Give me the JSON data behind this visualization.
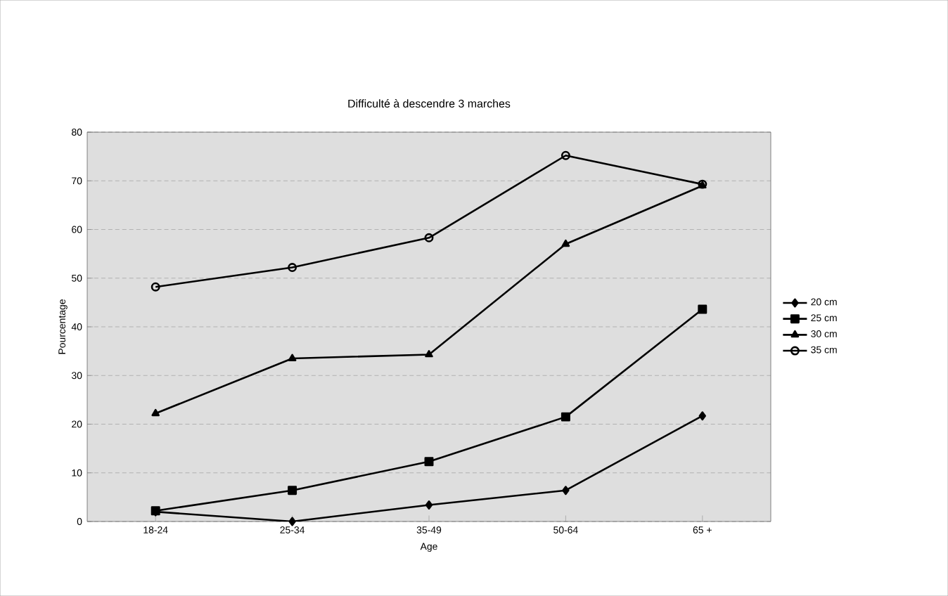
{
  "chart_data": {
    "type": "line",
    "title": "Difficulté à descendre 3 marches",
    "xlabel": "Age",
    "ylabel": "Pourcentage",
    "categories": [
      "18-24",
      "25-34",
      "35-49",
      "50-64",
      "65 +"
    ],
    "ylim": [
      0,
      80
    ],
    "yticks": [
      0,
      10,
      20,
      30,
      40,
      50,
      60,
      70,
      80
    ],
    "grid": "y",
    "legend": "right",
    "series": [
      {
        "name": "20 cm",
        "color": "#000000",
        "marker": "diamond",
        "values": [
          2,
          0,
          3.4,
          6.4,
          21.7
        ]
      },
      {
        "name": "25 cm",
        "color": "#000000",
        "marker": "square",
        "values": [
          2.2,
          6.4,
          12.3,
          21.5,
          43.6
        ]
      },
      {
        "name": "30 cm",
        "color": "#000000",
        "marker": "triangle",
        "values": [
          22.2,
          33.5,
          34.3,
          57,
          69
        ]
      },
      {
        "name": "35 cm",
        "color": "#000000",
        "marker": "circle",
        "values": [
          48.2,
          52.2,
          58.3,
          75.2,
          69.3
        ]
      }
    ]
  }
}
